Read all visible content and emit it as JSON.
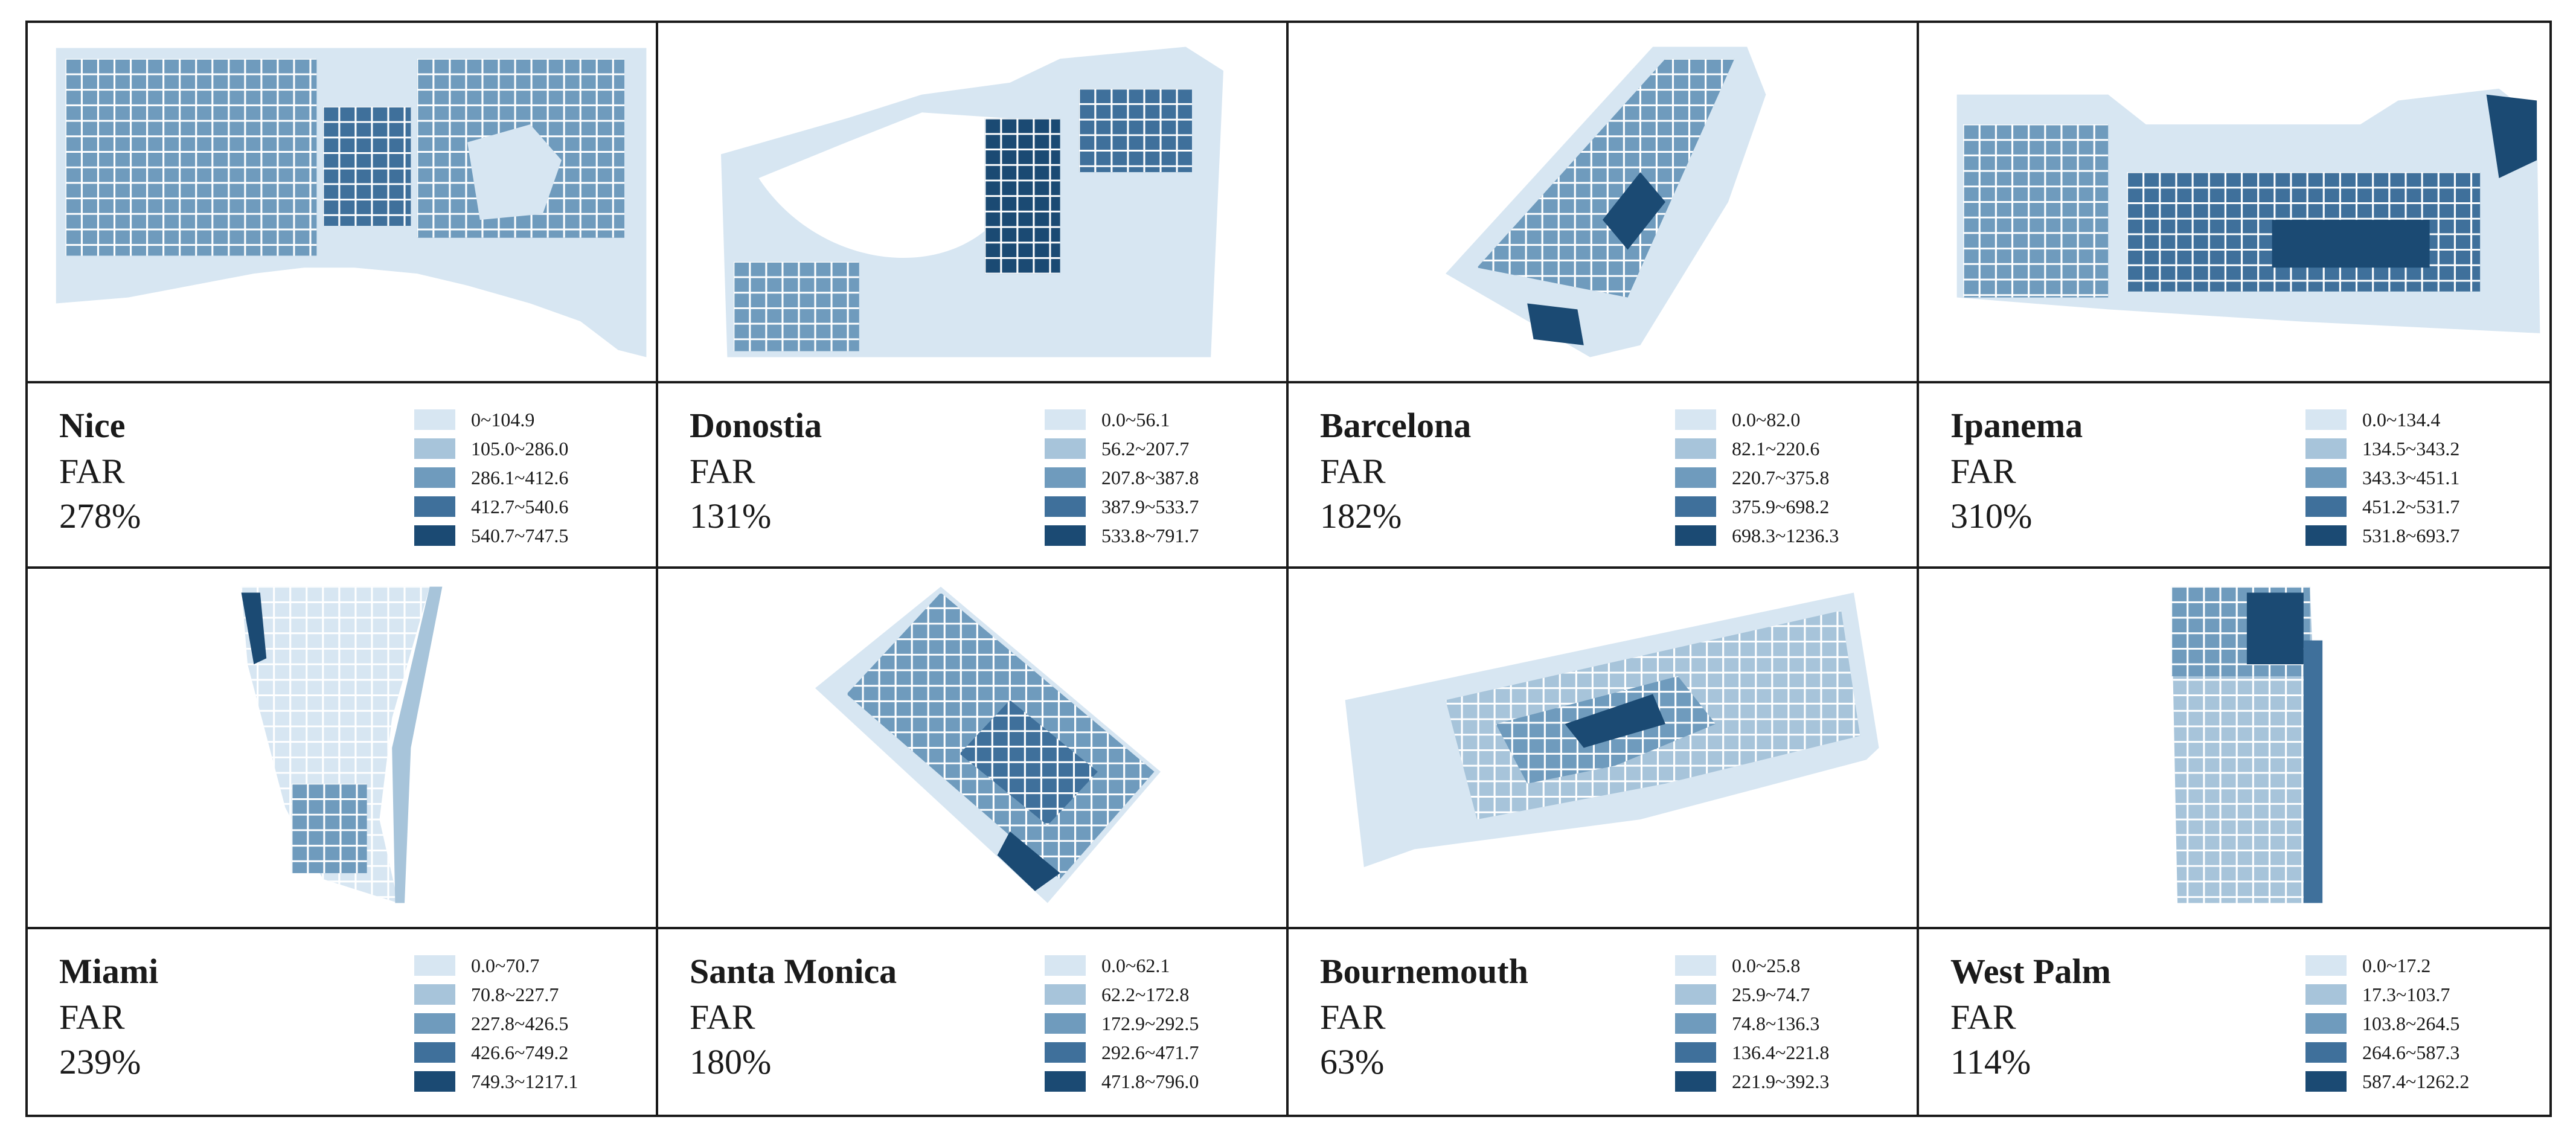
{
  "legend_colors": [
    "#d7e6f2",
    "#a7c4da",
    "#6f9bbd",
    "#3f709b",
    "#1b4a73"
  ],
  "colors": {
    "border": "#1a1a1a",
    "background": "#ffffff",
    "road": "#ffffff"
  },
  "panels": [
    {
      "city": "Nice",
      "metric": "FAR",
      "value": "278%",
      "legend": [
        "0~104.9",
        "105.0~286.0",
        "286.1~412.6",
        "412.7~540.6",
        "540.7~747.5"
      ]
    },
    {
      "city": "Donostia",
      "metric": "FAR",
      "value": "131%",
      "legend": [
        "0.0~56.1",
        "56.2~207.7",
        "207.8~387.8",
        "387.9~533.7",
        "533.8~791.7"
      ]
    },
    {
      "city": "Barcelona",
      "metric": "FAR",
      "value": "182%",
      "legend": [
        "0.0~82.0",
        "82.1~220.6",
        "220.7~375.8",
        "375.9~698.2",
        "698.3~1236.3"
      ]
    },
    {
      "city": "Ipanema",
      "metric": "FAR",
      "value": "310%",
      "legend": [
        "0.0~134.4",
        "134.5~343.2",
        "343.3~451.1",
        "451.2~531.7",
        "531.8~693.7"
      ]
    },
    {
      "city": "Miami",
      "metric": "FAR",
      "value": "239%",
      "legend": [
        "0.0~70.7",
        "70.8~227.7",
        "227.8~426.5",
        "426.6~749.2",
        "749.3~1217.1"
      ]
    },
    {
      "city": "Santa Monica",
      "metric": "FAR",
      "value": "180%",
      "legend": [
        "0.0~62.1",
        "62.2~172.8",
        "172.9~292.5",
        "292.6~471.7",
        "471.8~796.0"
      ]
    },
    {
      "city": "Bournemouth",
      "metric": "FAR",
      "value": "63%",
      "legend": [
        "0.0~25.8",
        "25.9~74.7",
        "74.8~136.3",
        "136.4~221.8",
        "221.9~392.3"
      ]
    },
    {
      "city": "West Palm",
      "metric": "FAR",
      "value": "114%",
      "legend": [
        "0.0~17.2",
        "17.3~103.7",
        "103.8~264.5",
        "264.6~587.3",
        "587.4~1262.2"
      ]
    }
  ]
}
